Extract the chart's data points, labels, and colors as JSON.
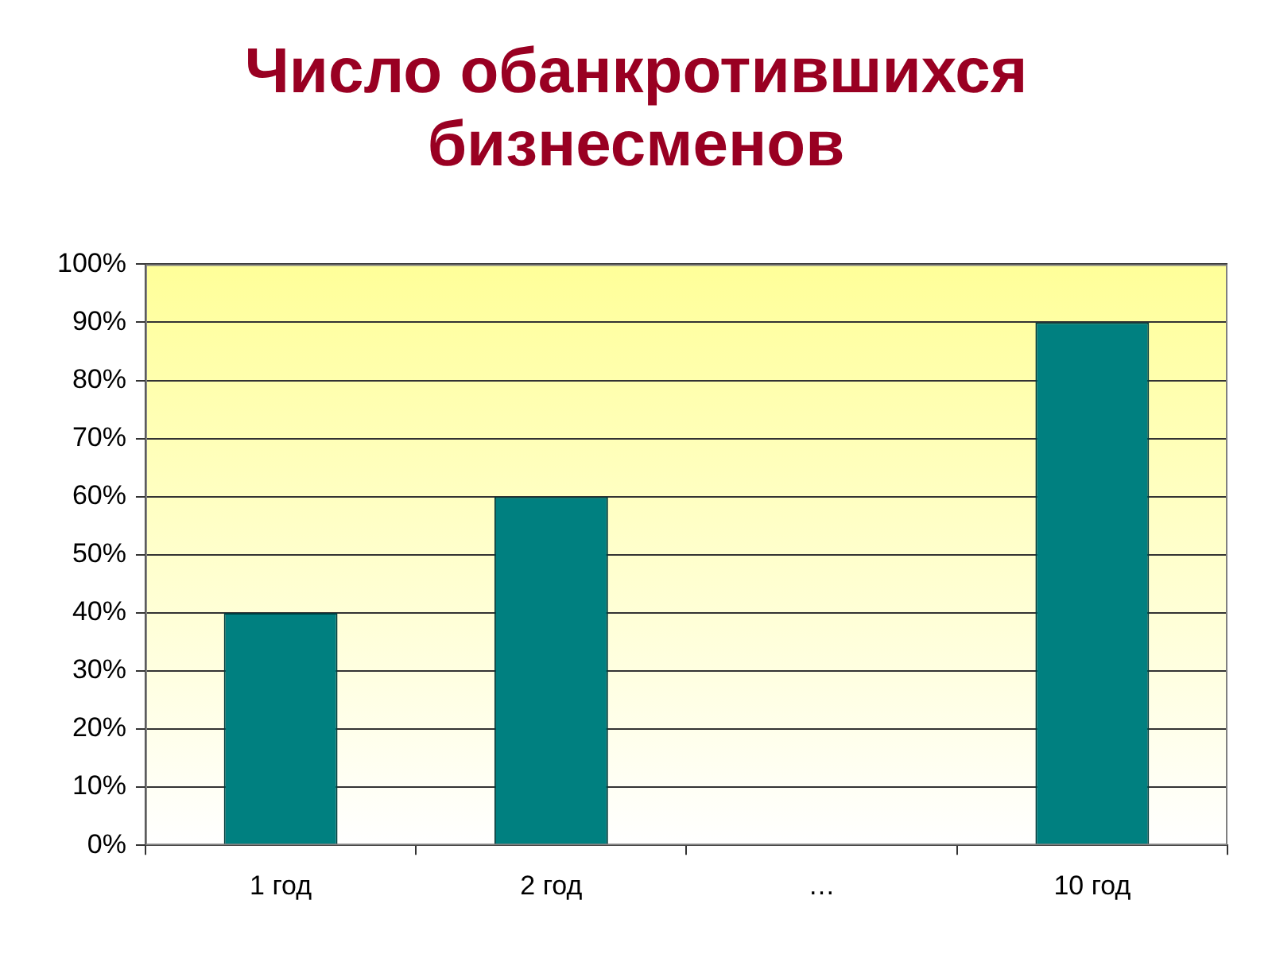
{
  "chart_data": {
    "type": "bar",
    "title": "Число обанкротившихся бизнесменов",
    "categories": [
      "1 год",
      "2 год",
      "…",
      "10 год"
    ],
    "values": [
      40,
      60,
      null,
      90
    ],
    "color": "#008080",
    "ylim": [
      0,
      100
    ],
    "yticks": [
      {
        "value": 0,
        "label": "0%"
      },
      {
        "value": 10,
        "label": "10%"
      },
      {
        "value": 20,
        "label": "20%"
      },
      {
        "value": 30,
        "label": "30%"
      },
      {
        "value": 40,
        "label": "40%"
      },
      {
        "value": 50,
        "label": "50%"
      },
      {
        "value": 60,
        "label": "60%"
      },
      {
        "value": 70,
        "label": "70%"
      },
      {
        "value": 80,
        "label": "80%"
      },
      {
        "value": 90,
        "label": "90%"
      },
      {
        "value": 100,
        "label": "100%"
      }
    ],
    "grid": "y",
    "legend": false
  }
}
